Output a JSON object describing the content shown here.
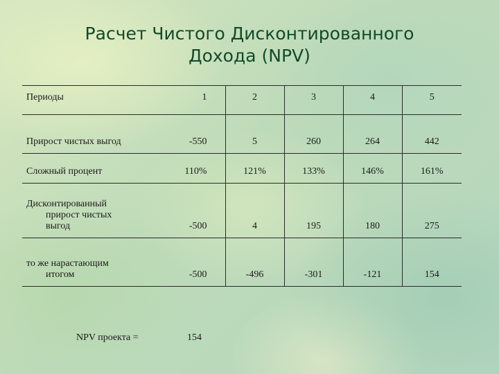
{
  "title": {
    "line1": "Расчет Чистого Дисконтированного",
    "line2": "Дохода (NPV)"
  },
  "table": {
    "header": [
      "Периоды",
      "1",
      "2",
      "3",
      "4",
      "5"
    ],
    "rows": [
      {
        "label_lines": [
          "Прирост чистых выгод"
        ],
        "values": [
          "-550",
          "5",
          "260",
          "264",
          "442"
        ]
      },
      {
        "label_lines": [
          "Сложный процент"
        ],
        "values": [
          "110%",
          "121%",
          "133%",
          "146%",
          "161%"
        ]
      },
      {
        "label_lines": [
          "Дисконтированный",
          "прирост чистых",
          "выгод"
        ],
        "values": [
          "-500",
          "4",
          "195",
          "180",
          "275"
        ]
      },
      {
        "label_lines": [
          "то же нарастающим",
          "итогом"
        ],
        "values": [
          "-500",
          "-496",
          "-301",
          "-121",
          "154"
        ]
      }
    ]
  },
  "npv": {
    "label": "NPV проекта =",
    "value": "154"
  },
  "colors": {
    "title": "#124a2a",
    "text": "#1a1a1a",
    "background": "#c9dfb9"
  }
}
